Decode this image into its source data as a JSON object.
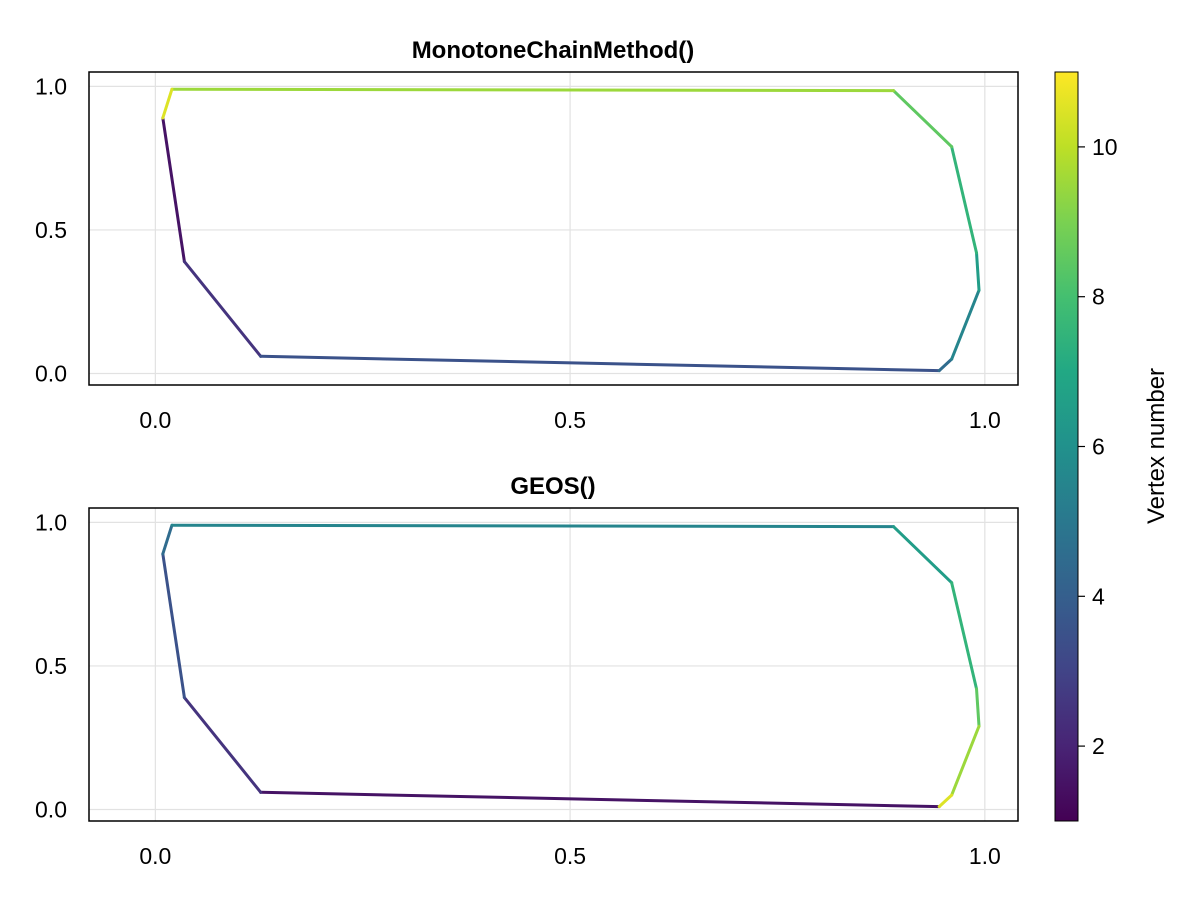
{
  "chart_data": [
    {
      "type": "line",
      "title": "MonotoneChainMethod()",
      "xlabel": "",
      "ylabel": "",
      "xlim": [
        -0.08,
        1.04
      ],
      "ylim": [
        -0.04,
        1.05
      ],
      "xticks": [
        "0.0",
        "0.5",
        "1.0"
      ],
      "yticks": [
        "0.0",
        "0.5",
        "1.0"
      ],
      "grid": true,
      "color_by": "vertex_number",
      "x": [
        0.009,
        0.035,
        0.127,
        0.945,
        0.96,
        0.993,
        0.99,
        0.96,
        0.89,
        0.02,
        0.009
      ],
      "y": [
        0.89,
        0.39,
        0.06,
        0.01,
        0.05,
        0.29,
        0.42,
        0.79,
        0.985,
        0.99,
        0.89
      ],
      "vertex_number": [
        1,
        2,
        3,
        4,
        5,
        6,
        7,
        8,
        9,
        10,
        11
      ]
    },
    {
      "type": "line",
      "title": "GEOS()",
      "xlabel": "",
      "ylabel": "",
      "xlim": [
        -0.08,
        1.04
      ],
      "ylim": [
        -0.04,
        1.05
      ],
      "xticks": [
        "0.0",
        "0.5",
        "1.0"
      ],
      "yticks": [
        "0.0",
        "0.5",
        "1.0"
      ],
      "grid": true,
      "color_by": "vertex_number",
      "x": [
        0.945,
        0.127,
        0.035,
        0.009,
        0.02,
        0.89,
        0.96,
        0.99,
        0.993,
        0.96,
        0.945
      ],
      "y": [
        0.01,
        0.06,
        0.39,
        0.89,
        0.99,
        0.985,
        0.79,
        0.42,
        0.29,
        0.05,
        0.01
      ],
      "vertex_number": [
        1,
        2,
        3,
        4,
        5,
        6,
        7,
        8,
        9,
        10,
        11
      ]
    }
  ],
  "colorbar": {
    "label": "Vertex number",
    "min": 1,
    "max": 11,
    "ticks": [
      "2",
      "4",
      "6",
      "8",
      "10"
    ],
    "tick_values": [
      2,
      4,
      6,
      8,
      10
    ],
    "colormap": "viridis"
  }
}
